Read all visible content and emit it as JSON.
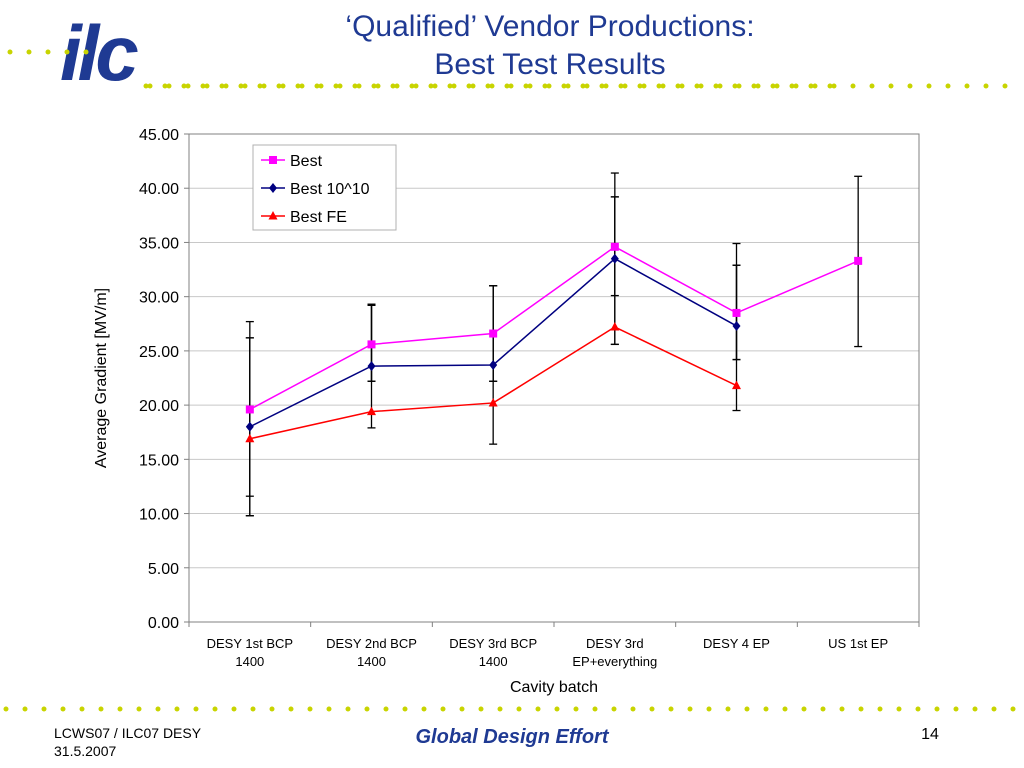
{
  "slide": {
    "title_line1": "‘Qualified’ Vendor Productions:",
    "title_line2": "Best Test Results",
    "logo_text": "ilc",
    "footer_left_line1": "LCWS07 / ILC07 DESY",
    "footer_left_line2": "31.5.2007",
    "footer_center": "Global Design Effort",
    "page_number": "14"
  },
  "colors": {
    "title": "#1f3a93",
    "dots": "#c8d400",
    "best": "#ff00ff",
    "best1010": "#000080",
    "bestfe": "#ff0000"
  },
  "chart_data": {
    "type": "line",
    "title": "",
    "xlabel": "Cavity batch",
    "ylabel": "Average Gradient [MV/m]",
    "ylim": [
      0,
      45
    ],
    "yticks": [
      "0.00",
      "5.00",
      "10.00",
      "15.00",
      "20.00",
      "25.00",
      "30.00",
      "35.00",
      "40.00",
      "45.00"
    ],
    "categories": [
      [
        "DESY 1st BCP",
        "1400"
      ],
      [
        "DESY 2nd BCP",
        "1400"
      ],
      [
        "DESY 3rd BCP",
        "1400"
      ],
      [
        "DESY 3rd",
        "EP+everything"
      ],
      [
        "DESY 4 EP",
        ""
      ],
      [
        "US 1st EP",
        ""
      ]
    ],
    "legend_position": "top-left",
    "grid": true,
    "series": [
      {
        "name": "Best",
        "color": "#ff00ff",
        "marker": "square",
        "values": [
          19.6,
          25.6,
          26.6,
          34.6,
          28.5,
          33.3
        ],
        "error_low": [
          9.8,
          22.2,
          22.2,
          30.1,
          24.2,
          25.4
        ],
        "error_high": [
          27.7,
          29.2,
          31.0,
          41.4,
          34.9,
          41.1
        ]
      },
      {
        "name": "Best 10^10",
        "color": "#000080",
        "marker": "diamond",
        "values": [
          18.0,
          23.6,
          23.7,
          33.5,
          27.3,
          null
        ],
        "error_low": [
          11.6,
          22.2,
          22.2,
          25.6,
          24.2,
          null
        ],
        "error_high": [
          26.2,
          29.3,
          31.0,
          39.2,
          32.9,
          null
        ]
      },
      {
        "name": "Best FE",
        "color": "#ff0000",
        "marker": "triangle",
        "values": [
          16.9,
          19.4,
          20.2,
          27.2,
          21.8,
          null
        ],
        "error_low": [
          9.8,
          17.9,
          16.4,
          25.6,
          19.5,
          null
        ],
        "error_high": [
          26.2,
          29.3,
          31.0,
          39.2,
          32.9,
          null
        ]
      }
    ]
  }
}
